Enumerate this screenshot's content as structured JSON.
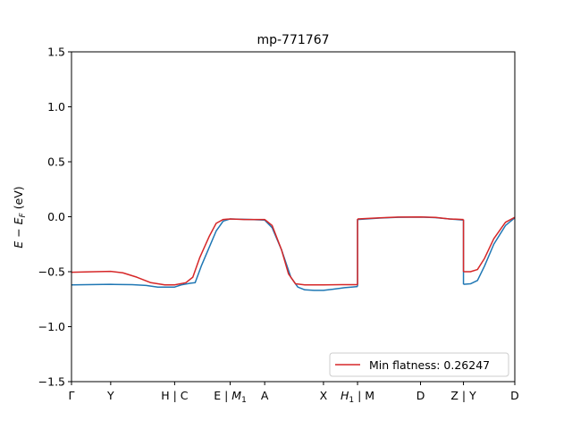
{
  "chart_data": {
    "type": "line",
    "title": "mp-771767",
    "ylabel": "E − E_F (eV)",
    "xlabel": "",
    "ylim": [
      -1.5,
      1.5
    ],
    "xlim": [
      0,
      9.5
    ],
    "yticks": [
      -1.5,
      -1.0,
      -0.5,
      0.0,
      0.5,
      1.0,
      1.5
    ],
    "ytick_labels": [
      "−1.5",
      "−1.0",
      "−0.5",
      "0.0",
      "0.5",
      "1.0",
      "1.5"
    ],
    "xticks": [
      {
        "x": 0.0,
        "label": "Γ",
        "sub": ""
      },
      {
        "x": 0.84,
        "label": "Y",
        "sub": ""
      },
      {
        "x": 2.21,
        "label": "H | C",
        "sub": ""
      },
      {
        "x": 3.4,
        "label": "E | M",
        "sub": "1"
      },
      {
        "x": 4.14,
        "label": "A",
        "sub": ""
      },
      {
        "x": 5.4,
        "label": "X",
        "sub": ""
      },
      {
        "x": 6.13,
        "label": "H",
        "sub": "1",
        "suffix": " | M"
      },
      {
        "x": 7.48,
        "label": "D",
        "sub": ""
      },
      {
        "x": 8.4,
        "label": "Z | Y",
        "sub": ""
      },
      {
        "x": 9.5,
        "label": "D",
        "sub": ""
      }
    ],
    "grid": false,
    "legend": {
      "placement": "lower-right",
      "label": "Min flatness: 0.26247"
    },
    "series": [
      {
        "color": "#1f77b4",
        "segments": [
          [
            [
              0.0,
              -0.62
            ],
            [
              0.5,
              -0.617
            ],
            [
              0.84,
              -0.615
            ],
            [
              1.3,
              -0.618
            ],
            [
              1.6,
              -0.625
            ],
            [
              1.85,
              -0.64
            ],
            [
              2.21,
              -0.64
            ],
            [
              2.35,
              -0.62
            ],
            [
              2.55,
              -0.605
            ],
            [
              2.65,
              -0.6
            ],
            [
              2.78,
              -0.45
            ],
            [
              2.95,
              -0.28
            ],
            [
              3.1,
              -0.13
            ],
            [
              3.25,
              -0.04
            ],
            [
              3.4,
              -0.02
            ],
            [
              3.6,
              -0.022
            ],
            [
              3.85,
              -0.025
            ],
            [
              4.14,
              -0.03
            ],
            [
              4.3,
              -0.1
            ],
            [
              4.5,
              -0.3
            ],
            [
              4.7,
              -0.55
            ],
            [
              4.85,
              -0.64
            ],
            [
              5.0,
              -0.665
            ],
            [
              5.2,
              -0.67
            ],
            [
              5.4,
              -0.67
            ],
            [
              5.6,
              -0.66
            ],
            [
              5.85,
              -0.645
            ],
            [
              6.0,
              -0.64
            ],
            [
              6.13,
              -0.635
            ]
          ],
          [
            [
              6.13,
              -0.025
            ],
            [
              6.6,
              -0.012
            ],
            [
              7.0,
              -0.005
            ],
            [
              7.48,
              -0.003
            ],
            [
              7.8,
              -0.008
            ],
            [
              8.1,
              -0.02
            ],
            [
              8.4,
              -0.03
            ]
          ],
          [
            [
              8.4,
              -0.615
            ],
            [
              8.55,
              -0.61
            ],
            [
              8.7,
              -0.58
            ],
            [
              8.85,
              -0.45
            ],
            [
              9.05,
              -0.25
            ],
            [
              9.3,
              -0.08
            ],
            [
              9.5,
              -0.01
            ]
          ]
        ]
      },
      {
        "color": "#d62728",
        "segments": [
          [
            [
              0.0,
              -0.505
            ],
            [
              0.5,
              -0.5
            ],
            [
              0.84,
              -0.497
            ],
            [
              1.1,
              -0.51
            ],
            [
              1.4,
              -0.55
            ],
            [
              1.7,
              -0.6
            ],
            [
              2.0,
              -0.62
            ],
            [
              2.21,
              -0.62
            ],
            [
              2.45,
              -0.6
            ],
            [
              2.6,
              -0.55
            ],
            [
              2.75,
              -0.37
            ],
            [
              2.95,
              -0.18
            ],
            [
              3.1,
              -0.06
            ],
            [
              3.25,
              -0.025
            ],
            [
              3.4,
              -0.02
            ],
            [
              3.7,
              -0.025
            ],
            [
              4.14,
              -0.025
            ],
            [
              4.3,
              -0.08
            ],
            [
              4.5,
              -0.3
            ],
            [
              4.65,
              -0.52
            ],
            [
              4.8,
              -0.61
            ],
            [
              5.0,
              -0.62
            ],
            [
              5.4,
              -0.62
            ],
            [
              5.8,
              -0.618
            ],
            [
              6.13,
              -0.618
            ]
          ],
          [
            [
              6.13,
              -0.02
            ],
            [
              6.6,
              -0.01
            ],
            [
              7.0,
              -0.003
            ],
            [
              7.48,
              -0.002
            ],
            [
              7.8,
              -0.006
            ],
            [
              8.1,
              -0.02
            ],
            [
              8.4,
              -0.025
            ]
          ],
          [
            [
              8.4,
              -0.5
            ],
            [
              8.55,
              -0.5
            ],
            [
              8.7,
              -0.48
            ],
            [
              8.85,
              -0.38
            ],
            [
              9.05,
              -0.2
            ],
            [
              9.3,
              -0.05
            ],
            [
              9.5,
              -0.005
            ]
          ]
        ]
      }
    ]
  }
}
